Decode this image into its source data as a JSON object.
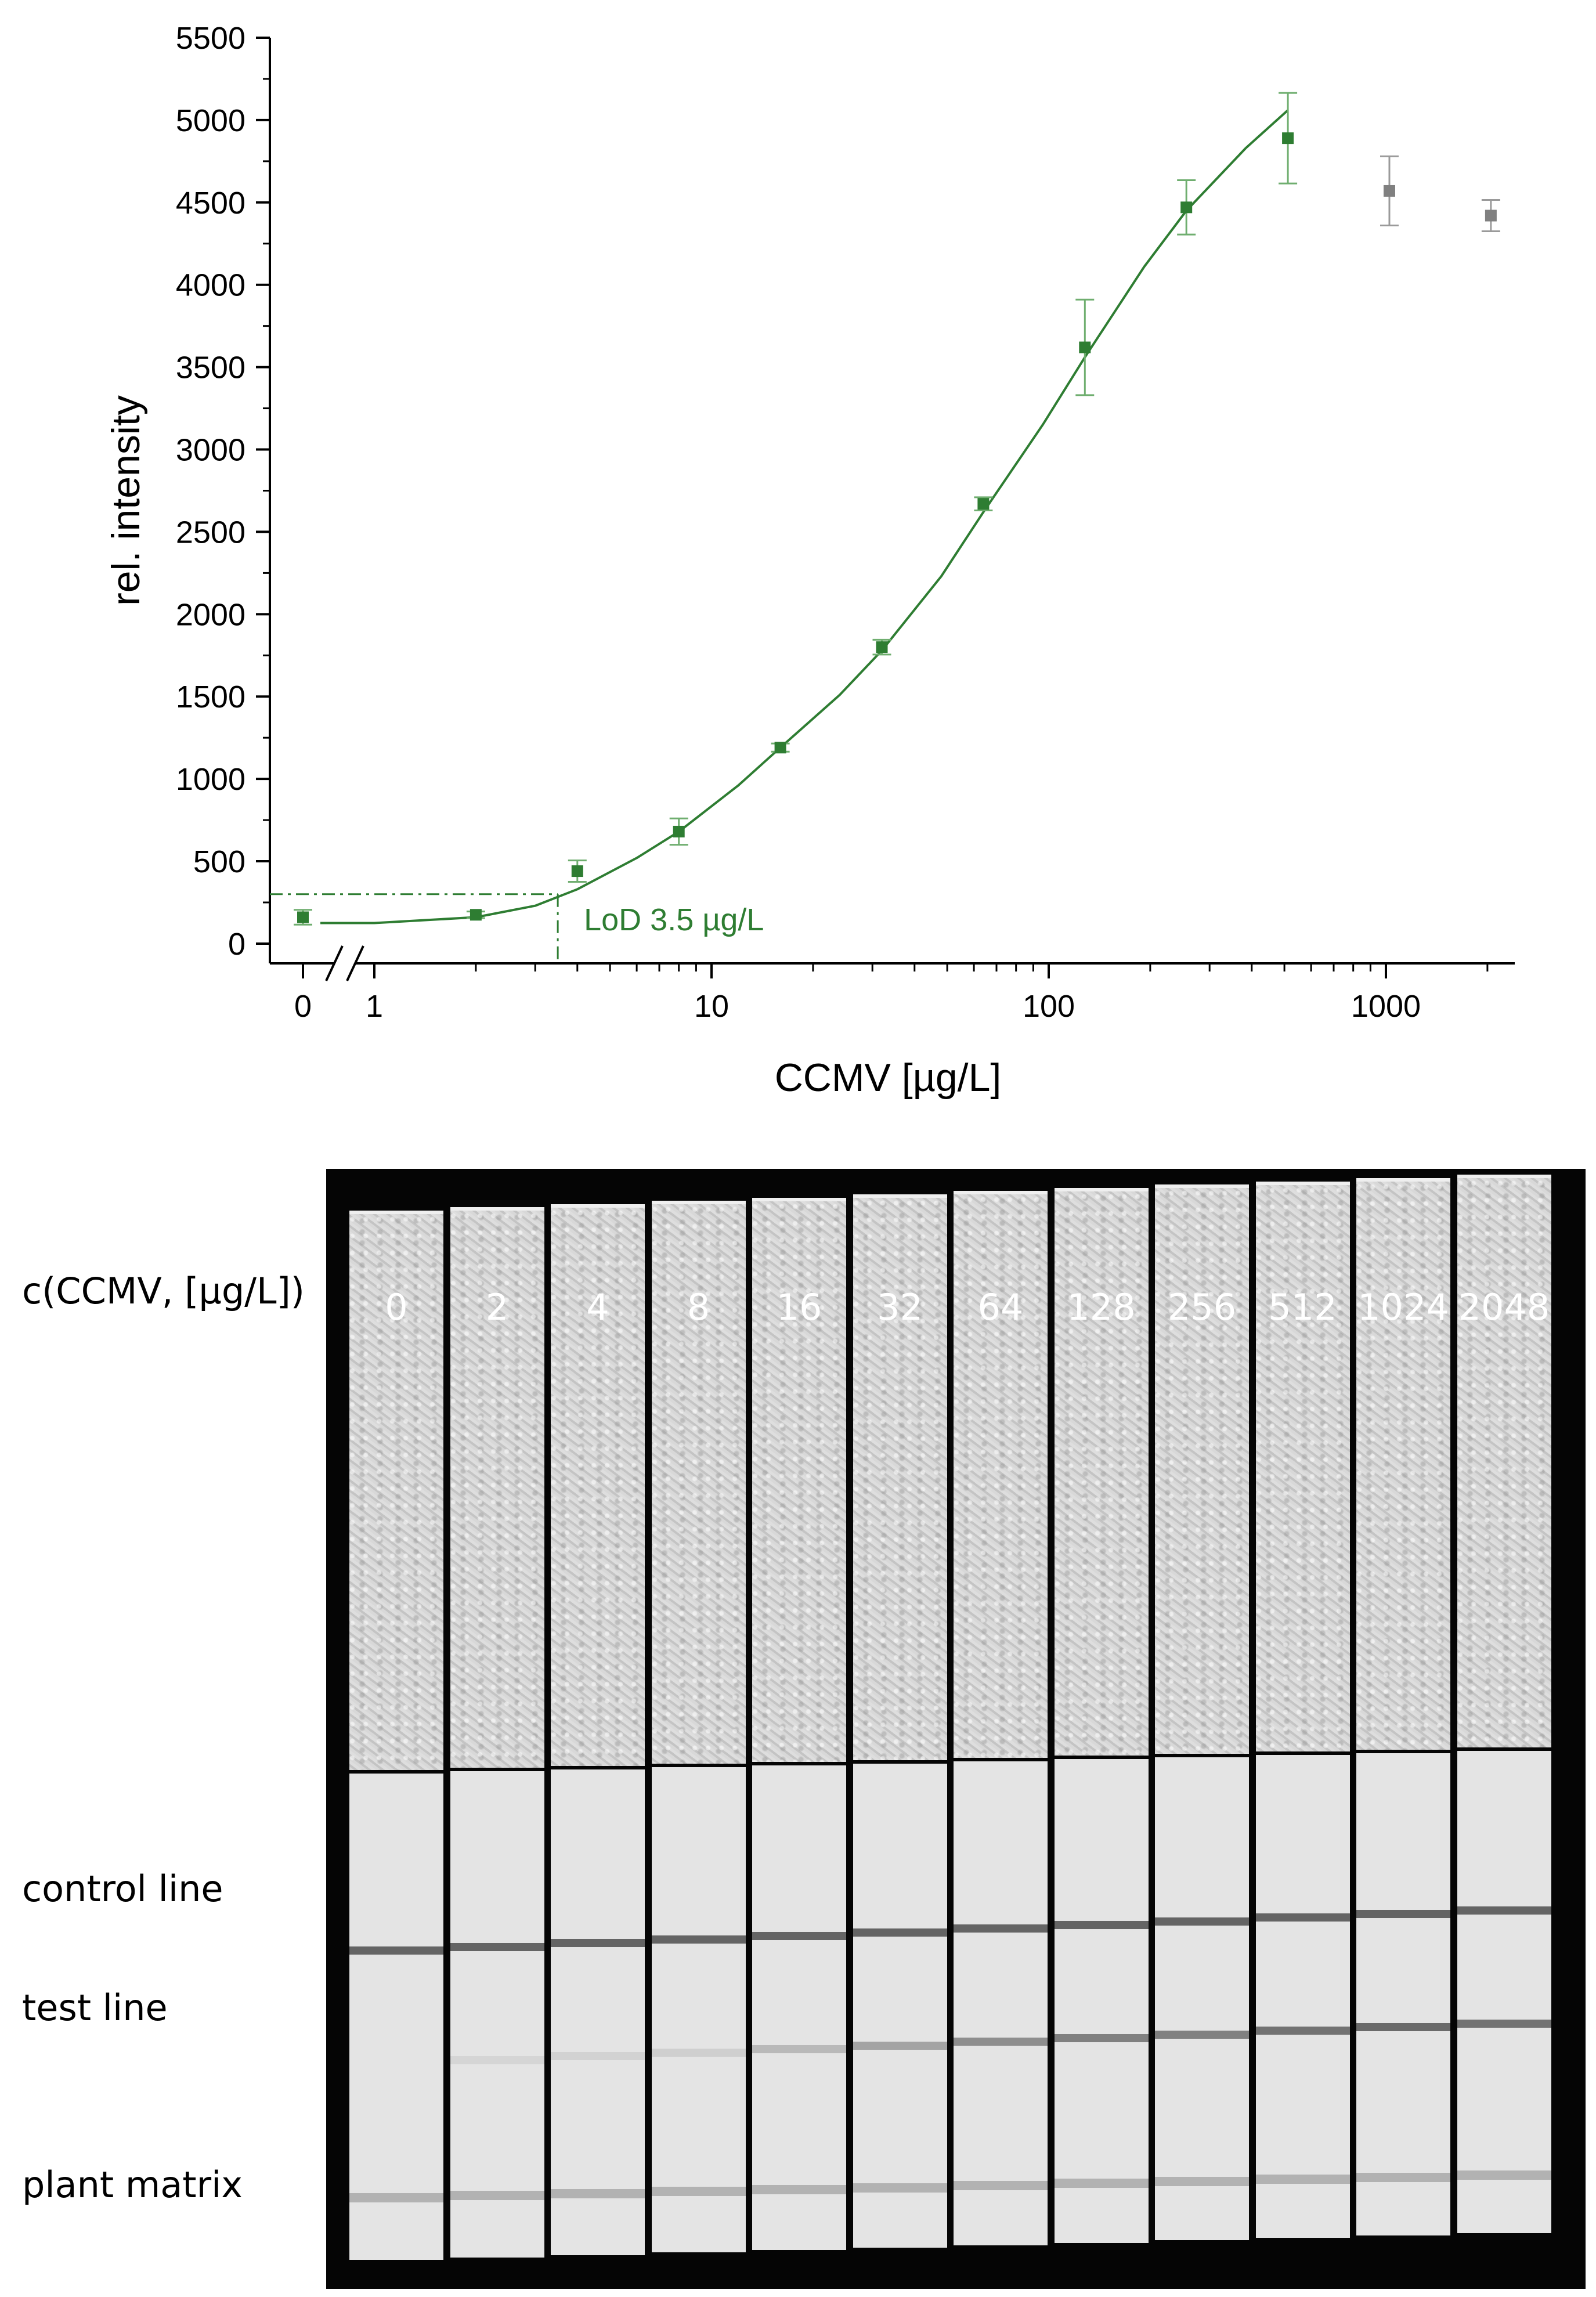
{
  "chart_data": {
    "type": "scatter",
    "xlabel": "CCMV [µg/L]",
    "ylabel": "rel. intensity",
    "x_scale": "log",
    "x_axis_break": [
      0,
      1
    ],
    "xlim": [
      0,
      2200
    ],
    "ylim": [
      -120,
      5500
    ],
    "x_tick_labels": [
      "0",
      "1",
      "10",
      "100",
      "1000"
    ],
    "x_ticks": [
      0,
      1,
      10,
      100,
      1000
    ],
    "y_ticks": [
      0,
      500,
      1000,
      1500,
      2000,
      2500,
      3000,
      3500,
      4000,
      4500,
      5000,
      5500
    ],
    "grid": false,
    "series": [
      {
        "role": "fitted",
        "color": "#2e7d32",
        "x": [
          0,
          2,
          4,
          8,
          16,
          32,
          64,
          128,
          256,
          512
        ],
        "y": [
          160,
          175,
          440,
          680,
          1190,
          1800,
          2670,
          3620,
          4470,
          4890
        ],
        "yerr": [
          45,
          20,
          65,
          80,
          25,
          45,
          40,
          290,
          165,
          275
        ]
      },
      {
        "role": "excluded",
        "color": "#808080",
        "x": [
          1024,
          2048
        ],
        "y": [
          4570,
          4420
        ],
        "yerr": [
          210,
          95
        ]
      }
    ],
    "fit": {
      "color": "#2e7d32",
      "x": [
        1,
        2,
        3,
        4,
        6,
        8,
        12,
        16,
        24,
        32,
        48,
        64,
        96,
        128,
        192,
        256,
        384,
        512
      ],
      "y": [
        125,
        160,
        230,
        330,
        520,
        680,
        960,
        1190,
        1510,
        1780,
        2230,
        2620,
        3150,
        3560,
        4110,
        4450,
        4830,
        5060
      ]
    },
    "lod": {
      "label": "LoD 3.5 µg/L",
      "x": 3.5,
      "y": 300
    }
  },
  "photo": {
    "header_label": "c(CCMV, [µg/L])",
    "concentrations": [
      "0",
      "2",
      "4",
      "8",
      "16",
      "32",
      "64",
      "128",
      "256",
      "512",
      "1024",
      "2048"
    ],
    "test_line_visibility": [
      0.0,
      0.1,
      0.12,
      0.15,
      0.3,
      0.45,
      0.6,
      0.7,
      0.7,
      0.8,
      0.85,
      0.8
    ],
    "row_labels": {
      "control": "control line",
      "test": "test line",
      "matrix": "plant matrix"
    }
  }
}
